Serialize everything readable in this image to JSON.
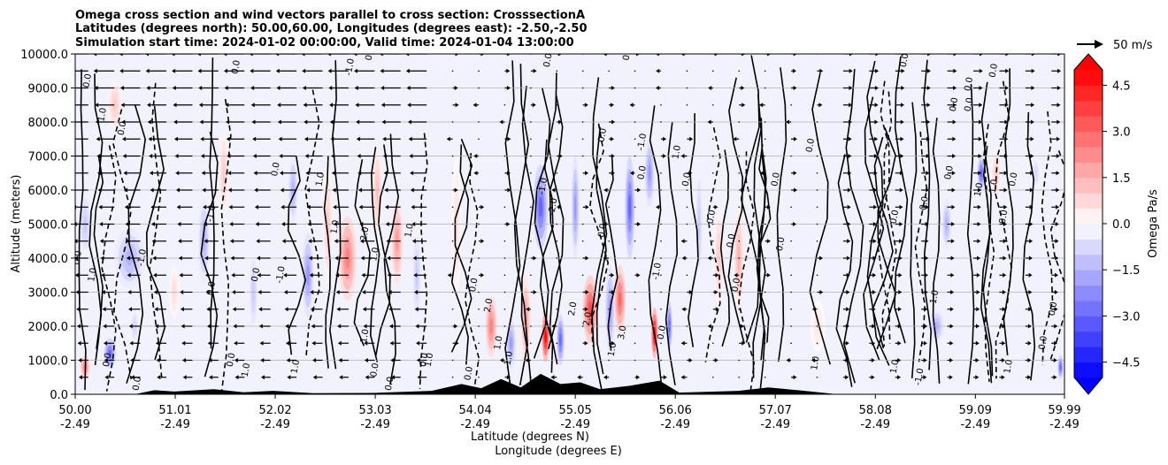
{
  "chart_data": {
    "type": "heatmap",
    "title_lines": [
      "Omega cross section and wind vectors parallel to cross section: CrosssectionA",
      "Latitudes (degrees north): 50.00,60.00, Longitudes (degrees east): -2.50,-2.50",
      "Simulation start time: 2024-01-02 00:00:00, Valid time: 2024-01-04 13:00:00"
    ],
    "xlabel_lines": [
      "Latitude (degrees N)",
      "Longitude (degrees E)"
    ],
    "ylabel": "Altitude (meters)",
    "xlim": [
      50.0,
      59.99
    ],
    "ylim": [
      0,
      10000
    ],
    "x_ticks": [
      {
        "lat": "50.00",
        "lon": "-2.49",
        "value": 50.0
      },
      {
        "lat": "51.01",
        "lon": "-2.49",
        "value": 51.01
      },
      {
        "lat": "52.02",
        "lon": "-2.49",
        "value": 52.02
      },
      {
        "lat": "53.03",
        "lon": "-2.49",
        "value": 53.03
      },
      {
        "lat": "54.04",
        "lon": "-2.49",
        "value": 54.04
      },
      {
        "lat": "55.05",
        "lon": "-2.49",
        "value": 55.05
      },
      {
        "lat": "56.06",
        "lon": "-2.49",
        "value": 56.06
      },
      {
        "lat": "57.07",
        "lon": "-2.49",
        "value": 57.07
      },
      {
        "lat": "58.08",
        "lon": "-2.49",
        "value": 58.08
      },
      {
        "lat": "59.09",
        "lon": "-2.49",
        "value": 59.09
      },
      {
        "lat": "59.99",
        "lon": "-2.49",
        "value": 59.99
      }
    ],
    "y_ticks": [
      {
        "label": "0.0",
        "value": 0
      },
      {
        "label": "1000.0",
        "value": 1000
      },
      {
        "label": "2000.0",
        "value": 2000
      },
      {
        "label": "3000.0",
        "value": 3000
      },
      {
        "label": "4000.0",
        "value": 4000
      },
      {
        "label": "5000.0",
        "value": 5000
      },
      {
        "label": "6000.0",
        "value": 6000
      },
      {
        "label": "7000.0",
        "value": 7000
      },
      {
        "label": "8000.0",
        "value": 8000
      },
      {
        "label": "9000.0",
        "value": 9000
      },
      {
        "label": "10000.0",
        "value": 10000
      }
    ],
    "grid": "horizontal",
    "colorbar": {
      "label": "Omega Pa/s",
      "range": [
        -5.0,
        5.0
      ],
      "step": 0.5,
      "extend": "both",
      "ticks": [
        {
          "label": "4.5",
          "value": 4.5
        },
        {
          "label": "3.0",
          "value": 3.0
        },
        {
          "label": "1.5",
          "value": 1.5
        },
        {
          "label": "0.0",
          "value": 0.0
        },
        {
          "label": "−1.5",
          "value": -1.5
        },
        {
          "label": "−3.0",
          "value": -3.0
        },
        {
          "label": "−4.5",
          "value": -4.5
        }
      ],
      "low_color": "#0000ff",
      "mid_color": "#ffffff",
      "high_color": "#ff0000"
    },
    "quiver_key": {
      "label": "50 m/s",
      "speed": 50
    },
    "omega_features": [
      {
        "lat": 50.35,
        "alt_center": 1200,
        "alt_extent": 900,
        "width": 0.12,
        "omega": -3.0
      },
      {
        "lat": 50.1,
        "alt_center": 800,
        "alt_extent": 700,
        "width": 0.1,
        "omega": 2.5
      },
      {
        "lat": 50.1,
        "alt_center": 5000,
        "alt_extent": 2000,
        "width": 0.15,
        "omega": -1.0
      },
      {
        "lat": 50.55,
        "alt_center": 4000,
        "alt_extent": 1800,
        "width": 0.3,
        "omega": -1.5
      },
      {
        "lat": 50.6,
        "alt_center": 2000,
        "alt_extent": 1200,
        "width": 0.1,
        "omega": -0.8
      },
      {
        "lat": 50.4,
        "alt_center": 8500,
        "alt_extent": 1500,
        "width": 0.15,
        "omega": 1.0
      },
      {
        "lat": 51.0,
        "alt_center": 3000,
        "alt_extent": 1500,
        "width": 0.1,
        "omega": 0.7
      },
      {
        "lat": 51.3,
        "alt_center": 4500,
        "alt_extent": 2500,
        "width": 0.12,
        "omega": -1.5
      },
      {
        "lat": 51.5,
        "alt_center": 6500,
        "alt_extent": 2500,
        "width": 0.1,
        "omega": 1.0
      },
      {
        "lat": 51.8,
        "alt_center": 3000,
        "alt_extent": 2500,
        "width": 0.1,
        "omega": -1.0
      },
      {
        "lat": 52.2,
        "alt_center": 6000,
        "alt_extent": 2000,
        "width": 0.1,
        "omega": -1.5
      },
      {
        "lat": 52.35,
        "alt_center": 3500,
        "alt_extent": 2500,
        "width": 0.12,
        "omega": -2.0
      },
      {
        "lat": 52.55,
        "alt_center": 5000,
        "alt_extent": 3500,
        "width": 0.1,
        "omega": 1.0
      },
      {
        "lat": 52.75,
        "alt_center": 4000,
        "alt_extent": 2500,
        "width": 0.18,
        "omega": 2.5
      },
      {
        "lat": 53.05,
        "alt_center": 6000,
        "alt_extent": 2500,
        "width": 0.1,
        "omega": 1.2
      },
      {
        "lat": 53.25,
        "alt_center": 4500,
        "alt_extent": 2500,
        "width": 0.12,
        "omega": 2.0
      },
      {
        "lat": 53.45,
        "alt_center": 3500,
        "alt_extent": 3000,
        "width": 0.1,
        "omega": -1.0
      },
      {
        "lat": 53.85,
        "alt_center": 5000,
        "alt_extent": 4000,
        "width": 0.1,
        "omega": 0.6
      },
      {
        "lat": 54.2,
        "alt_center": 2000,
        "alt_extent": 1800,
        "width": 0.12,
        "omega": 2.5
      },
      {
        "lat": 54.4,
        "alt_center": 1500,
        "alt_extent": 1500,
        "width": 0.1,
        "omega": -2.0
      },
      {
        "lat": 54.55,
        "alt_center": 2200,
        "alt_extent": 2500,
        "width": 0.1,
        "omega": 2.0
      },
      {
        "lat": 54.7,
        "alt_center": 5500,
        "alt_extent": 2500,
        "width": 0.15,
        "omega": -3.0
      },
      {
        "lat": 54.75,
        "alt_center": 1700,
        "alt_extent": 1500,
        "width": 0.08,
        "omega": 5.0
      },
      {
        "lat": 54.9,
        "alt_center": 1600,
        "alt_extent": 1500,
        "width": 0.08,
        "omega": -3.0
      },
      {
        "lat": 55.05,
        "alt_center": 5500,
        "alt_extent": 3000,
        "width": 0.08,
        "omega": -2.0
      },
      {
        "lat": 55.2,
        "alt_center": 2500,
        "alt_extent": 2000,
        "width": 0.15,
        "omega": 3.5
      },
      {
        "lat": 55.4,
        "alt_center": 2500,
        "alt_extent": 2500,
        "width": 0.1,
        "omega": -2.0
      },
      {
        "lat": 55.5,
        "alt_center": 2800,
        "alt_extent": 2000,
        "width": 0.12,
        "omega": 3.0
      },
      {
        "lat": 55.6,
        "alt_center": 5500,
        "alt_extent": 3000,
        "width": 0.1,
        "omega": -3.0
      },
      {
        "lat": 55.8,
        "alt_center": 6500,
        "alt_extent": 2000,
        "width": 0.1,
        "omega": -2.0
      },
      {
        "lat": 55.85,
        "alt_center": 1800,
        "alt_extent": 1500,
        "width": 0.07,
        "omega": 5.0
      },
      {
        "lat": 56.0,
        "alt_center": 2000,
        "alt_extent": 1500,
        "width": 0.06,
        "omega": -3.0
      },
      {
        "lat": 56.3,
        "alt_center": 5000,
        "alt_extent": 3500,
        "width": 0.08,
        "omega": -1.0
      },
      {
        "lat": 56.5,
        "alt_center": 4000,
        "alt_extent": 3000,
        "width": 0.1,
        "omega": 1.0
      },
      {
        "lat": 56.7,
        "alt_center": 4000,
        "alt_extent": 3000,
        "width": 0.1,
        "omega": 1.5
      },
      {
        "lat": 57.5,
        "alt_center": 2000,
        "alt_extent": 1500,
        "width": 0.15,
        "omega": 0.5
      },
      {
        "lat": 58.7,
        "alt_center": 2000,
        "alt_extent": 1000,
        "width": 0.15,
        "omega": -1.5
      },
      {
        "lat": 58.8,
        "alt_center": 5000,
        "alt_extent": 1500,
        "width": 0.1,
        "omega": -1.5
      },
      {
        "lat": 59.15,
        "alt_center": 6500,
        "alt_extent": 1000,
        "width": 0.08,
        "omega": -3.0
      },
      {
        "lat": 59.3,
        "alt_center": 6500,
        "alt_extent": 1500,
        "width": 0.1,
        "omega": 1.0
      },
      {
        "lat": 59.7,
        "alt_center": 6500,
        "alt_extent": 1000,
        "width": 0.1,
        "omega": -0.8
      },
      {
        "lat": 59.95,
        "alt_center": 800,
        "alt_extent": 700,
        "width": 0.06,
        "omega": -3.0
      }
    ],
    "contour_labels": [
      {
        "text": "0.0",
        "lat": 50.15,
        "alt": 9200
      },
      {
        "text": "1.0",
        "lat": 50.3,
        "alt": 8200
      },
      {
        "text": "0.0",
        "lat": 50.5,
        "alt": 7800
      },
      {
        "text": "0.0",
        "lat": 50.05,
        "alt": 4000
      },
      {
        "text": "1.0",
        "lat": 50.2,
        "alt": 3500
      },
      {
        "text": "-1.0",
        "lat": 50.7,
        "alt": 4000
      },
      {
        "text": "0.0",
        "lat": 50.35,
        "alt": 1000
      },
      {
        "text": "0.0",
        "lat": 50.65,
        "alt": 300
      },
      {
        "text": "-1.0",
        "lat": 51.4,
        "alt": 5300
      },
      {
        "text": "0.0",
        "lat": 51.4,
        "alt": 3100
      },
      {
        "text": "0.0",
        "lat": 51.6,
        "alt": 1000
      },
      {
        "text": "1.0",
        "lat": 51.75,
        "alt": 700
      },
      {
        "text": "0.0",
        "lat": 51.65,
        "alt": 9600
      },
      {
        "text": "0.0",
        "lat": 51.85,
        "alt": 3500
      },
      {
        "text": "0.0",
        "lat": 52.05,
        "alt": 6600
      },
      {
        "text": "1.0",
        "lat": 52.25,
        "alt": 800
      },
      {
        "text": "-1.0",
        "lat": 52.1,
        "alt": 3500
      },
      {
        "text": "1.0",
        "lat": 52.5,
        "alt": 6300
      },
      {
        "text": "1.0",
        "lat": 52.65,
        "alt": 4900
      },
      {
        "text": "-1.0",
        "lat": 52.8,
        "alt": 9600
      },
      {
        "text": "0.0",
        "lat": 53.0,
        "alt": 10000
      },
      {
        "text": "2.0",
        "lat": 52.95,
        "alt": 4700
      },
      {
        "text": "1.0",
        "lat": 53.4,
        "alt": 4800
      },
      {
        "text": "1.0",
        "lat": 53.05,
        "alt": 4100
      },
      {
        "text": "1.0",
        "lat": 52.95,
        "alt": 1700
      },
      {
        "text": "0.0",
        "lat": 53.05,
        "alt": 700
      },
      {
        "text": "0.0",
        "lat": 53.2,
        "alt": 300
      },
      {
        "text": "0.0",
        "lat": 53.55,
        "alt": 1000
      },
      {
        "text": "1.0",
        "lat": 53.6,
        "alt": 1000
      },
      {
        "text": "0.0",
        "lat": 54.05,
        "alt": 3200
      },
      {
        "text": "2.0",
        "lat": 54.2,
        "alt": 2600
      },
      {
        "text": "1.0",
        "lat": 54.3,
        "alt": 1500
      },
      {
        "text": "-1.0",
        "lat": 54.4,
        "alt": 1000
      },
      {
        "text": "0.0",
        "lat": 54.0,
        "alt": 600
      },
      {
        "text": "-1.0",
        "lat": 54.75,
        "alt": 6100
      },
      {
        "text": "-2.0",
        "lat": 54.85,
        "alt": 5500
      },
      {
        "text": "0.0",
        "lat": 54.8,
        "alt": 9800
      },
      {
        "text": "2.0",
        "lat": 55.05,
        "alt": 2500
      },
      {
        "text": "0.0",
        "lat": 55.35,
        "alt": 7600
      },
      {
        "text": "0.0",
        "lat": 55.35,
        "alt": 4800
      },
      {
        "text": "2.0",
        "lat": 55.2,
        "alt": 2200
      },
      {
        "text": "3.0",
        "lat": 55.55,
        "alt": 1800
      },
      {
        "text": "1.0",
        "lat": 55.45,
        "alt": 1300
      },
      {
        "text": "0.0",
        "lat": 55.6,
        "alt": 10000
      },
      {
        "text": "-1.0",
        "lat": 55.75,
        "alt": 7400
      },
      {
        "text": "0.0",
        "lat": 55.75,
        "alt": 6500
      },
      {
        "text": "-1.0",
        "lat": 55.9,
        "alt": 3600
      },
      {
        "text": "0.0",
        "lat": 55.95,
        "alt": 1800
      },
      {
        "text": "1.0",
        "lat": 56.1,
        "alt": 7100
      },
      {
        "text": "0.0",
        "lat": 56.2,
        "alt": 6300
      },
      {
        "text": "0.0",
        "lat": 56.45,
        "alt": 5200
      },
      {
        "text": "0.0",
        "lat": 56.65,
        "alt": 4500
      },
      {
        "text": "0.0",
        "lat": 56.7,
        "alt": 3200
      },
      {
        "text": "0.0",
        "lat": 57.1,
        "alt": 6300
      },
      {
        "text": "0.0",
        "lat": 57.15,
        "alt": 4400
      },
      {
        "text": "0.0",
        "lat": 57.45,
        "alt": 7300
      },
      {
        "text": "1.0",
        "lat": 57.5,
        "alt": 900
      },
      {
        "text": "0.0",
        "lat": 58.3,
        "alt": 5200
      },
      {
        "text": "0.0",
        "lat": 58.6,
        "alt": 5600
      },
      {
        "text": "-1.0",
        "lat": 58.7,
        "alt": 2800
      },
      {
        "text": "1.0",
        "lat": 58.3,
        "alt": 800
      },
      {
        "text": "-1.0",
        "lat": 58.55,
        "alt": 500
      },
      {
        "text": "0.0",
        "lat": 58.4,
        "alt": 9800
      },
      {
        "text": "0.0",
        "lat": 58.85,
        "alt": 6500
      },
      {
        "text": "0.0",
        "lat": 58.9,
        "alt": 8500
      },
      {
        "text": "0.0",
        "lat": 59.05,
        "alt": 9100
      },
      {
        "text": "0.0",
        "lat": 59.05,
        "alt": 8500
      },
      {
        "text": "1.0",
        "lat": 59.15,
        "alt": 6000
      },
      {
        "text": "0.0",
        "lat": 59.3,
        "alt": 9500
      },
      {
        "text": "1.0",
        "lat": 59.3,
        "alt": 6100
      },
      {
        "text": "0.0",
        "lat": 59.4,
        "alt": 5200
      },
      {
        "text": "0.0",
        "lat": 59.5,
        "alt": 6300
      },
      {
        "text": "0.0",
        "lat": 59.8,
        "alt": 1500
      },
      {
        "text": "1.0",
        "lat": 59.45,
        "alt": 800
      },
      {
        "text": "0.0",
        "lat": 59.9,
        "alt": 2500
      }
    ],
    "terrain": [
      {
        "lat": 50.0,
        "height": 0
      },
      {
        "lat": 50.6,
        "height": 0
      },
      {
        "lat": 50.8,
        "height": 120
      },
      {
        "lat": 51.0,
        "height": 80
      },
      {
        "lat": 51.4,
        "height": 150
      },
      {
        "lat": 51.7,
        "height": 60
      },
      {
        "lat": 52.0,
        "height": 100
      },
      {
        "lat": 52.4,
        "height": 30
      },
      {
        "lat": 53.0,
        "height": 40
      },
      {
        "lat": 53.6,
        "height": 100
      },
      {
        "lat": 53.9,
        "height": 300
      },
      {
        "lat": 54.1,
        "height": 180
      },
      {
        "lat": 54.3,
        "height": 450
      },
      {
        "lat": 54.5,
        "height": 200
      },
      {
        "lat": 54.7,
        "height": 600
      },
      {
        "lat": 54.9,
        "height": 300
      },
      {
        "lat": 55.1,
        "height": 350
      },
      {
        "lat": 55.3,
        "height": 150
      },
      {
        "lat": 55.6,
        "height": 250
      },
      {
        "lat": 55.9,
        "height": 400
      },
      {
        "lat": 56.1,
        "height": 50
      },
      {
        "lat": 56.7,
        "height": 100
      },
      {
        "lat": 57.0,
        "height": 200
      },
      {
        "lat": 57.3,
        "height": 120
      },
      {
        "lat": 57.7,
        "height": 0
      },
      {
        "lat": 59.99,
        "height": 0
      }
    ]
  }
}
